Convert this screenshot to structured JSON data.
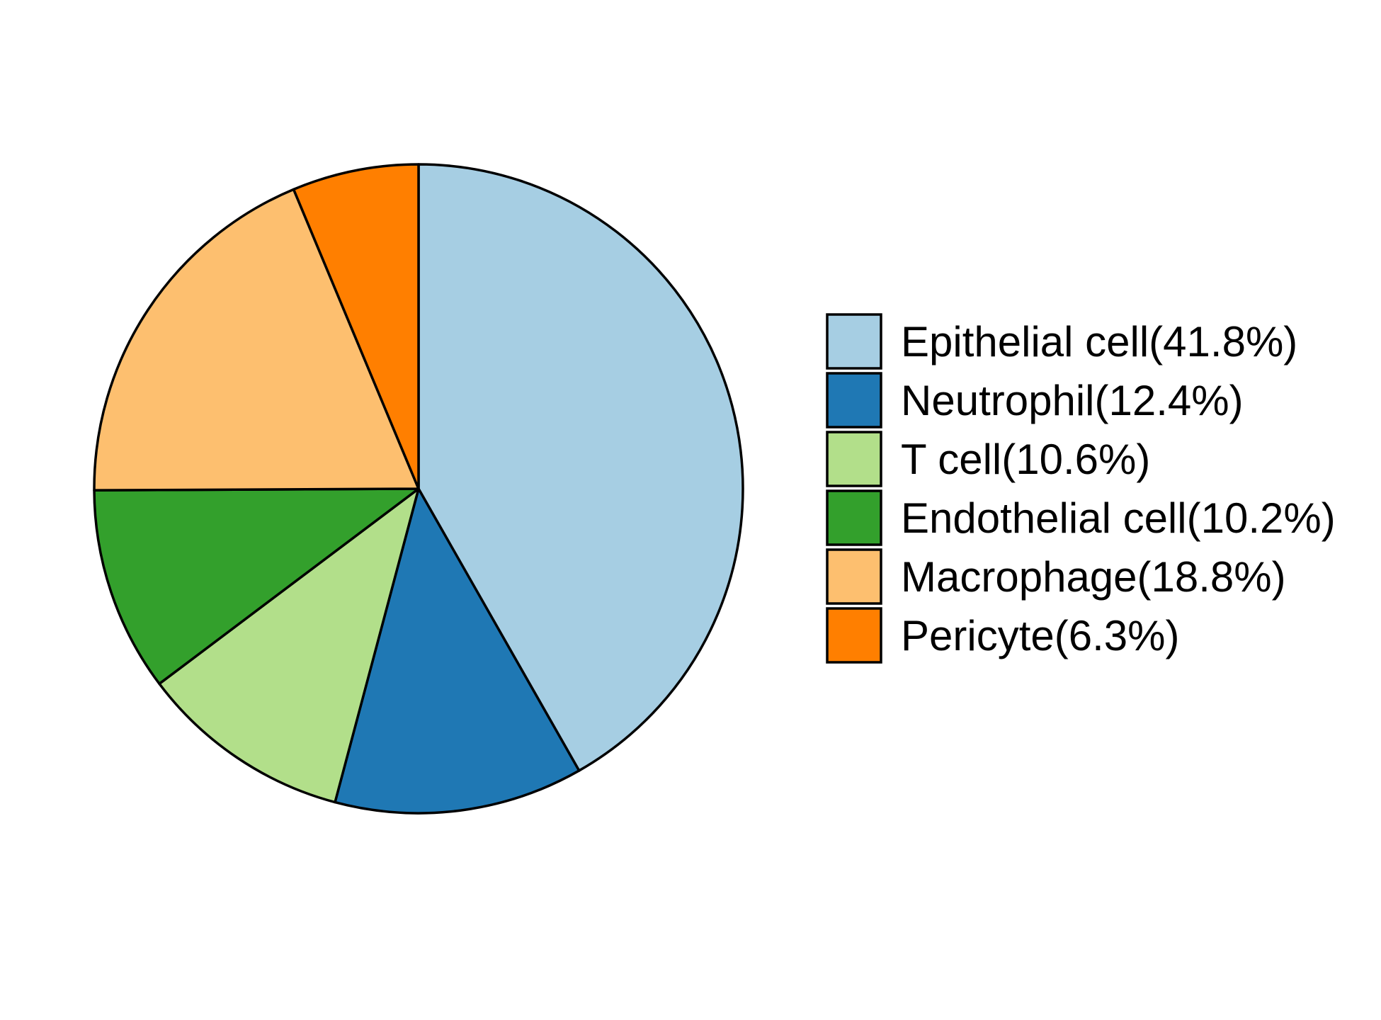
{
  "chart_data": {
    "type": "pie",
    "start_angle": "12 o'clock",
    "direction": "clockwise",
    "legend_position": "right",
    "slices": [
      {
        "label": "Epithelial cell",
        "value": 41.8,
        "legend_text": "Epithelial cell(41.8%)",
        "color": "#A6CEE3"
      },
      {
        "label": "Neutrophil",
        "value": 12.4,
        "legend_text": "Neutrophil(12.4%)",
        "color": "#1F78B4"
      },
      {
        "label": "T cell",
        "value": 10.6,
        "legend_text": "T cell(10.6%)",
        "color": "#B2DF8A"
      },
      {
        "label": "Endothelial cell",
        "value": 10.2,
        "legend_text": "Endothelial cell(10.2%)",
        "color": "#33A02C"
      },
      {
        "label": "Macrophage",
        "value": 18.8,
        "legend_text": "Macrophage(18.8%)",
        "color": "#FDBF6F"
      },
      {
        "label": "Pericyte",
        "value": 6.3,
        "legend_text": "Pericyte(6.3%)",
        "color": "#FF7F00"
      }
    ]
  }
}
